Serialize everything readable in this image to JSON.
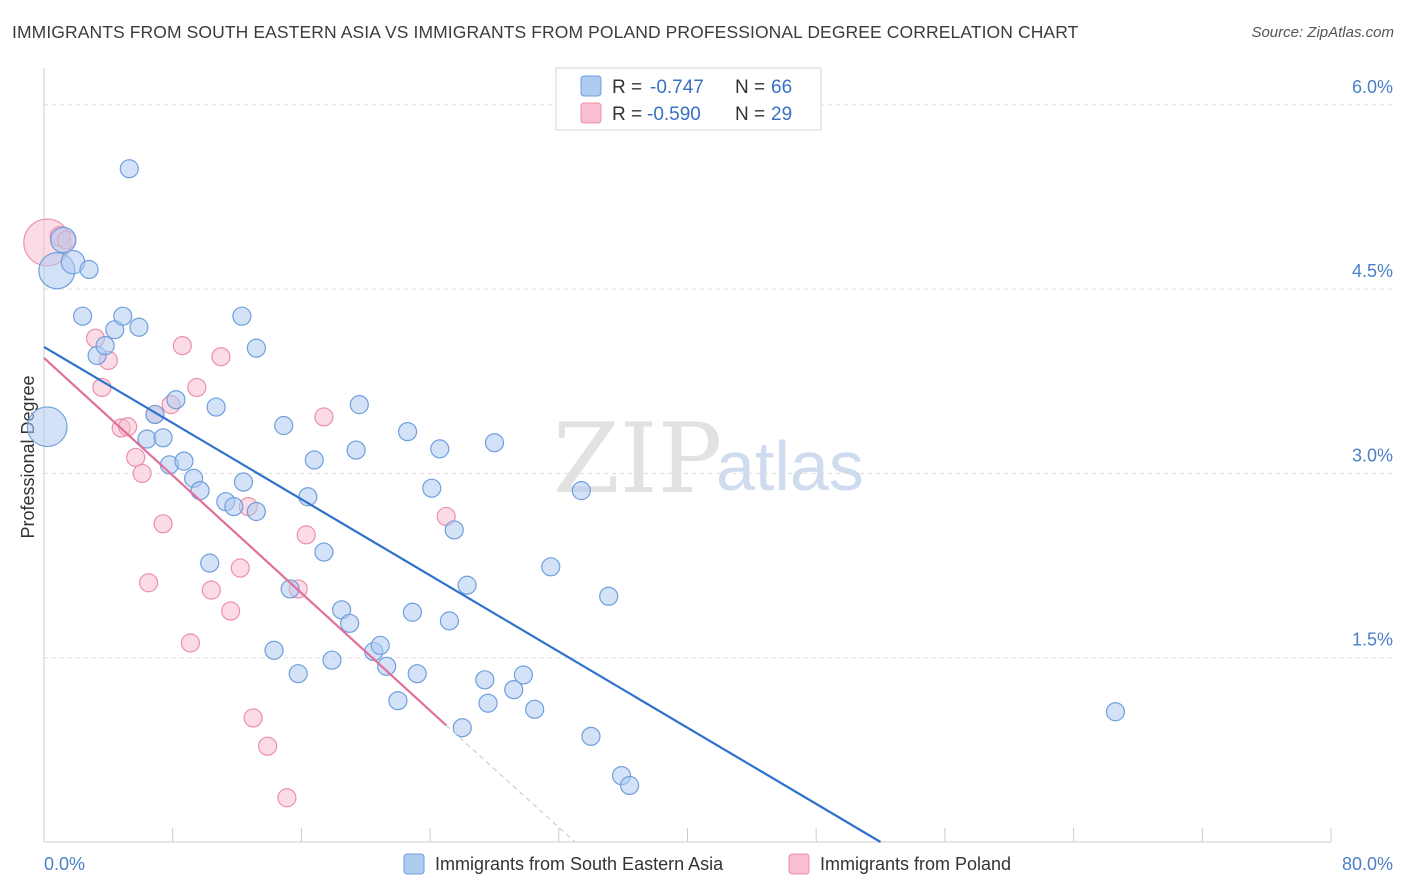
{
  "title": "IMMIGRANTS FROM SOUTH EASTERN ASIA VS IMMIGRANTS FROM POLAND PROFESSIONAL DEGREE CORRELATION CHART",
  "source": "Source: ZipAtlas.com",
  "watermark": {
    "zip": "ZIP",
    "atlas": "atlas"
  },
  "colors": {
    "blue_fill": "#aecbf0",
    "blue_stroke": "#6f9fdc",
    "blue_line": "#2f72cc",
    "pink_fill": "#f7bfd0",
    "pink_stroke": "#ec8fab",
    "pink_line": "#e0709a",
    "grid": "#dddddd",
    "tick_label": "#4a80c8"
  },
  "legend": {
    "rows": [
      {
        "r_label": "R = ",
        "r_value": "-0.747",
        "n_label": "N = ",
        "n_value": "66"
      },
      {
        "r_label": "R = ",
        "r_value": "-0.590",
        "n_label": "N = ",
        "n_value": "29"
      }
    ]
  },
  "chart_data": {
    "type": "scatter",
    "title": "IMMIGRANTS FROM SOUTH EASTERN ASIA VS IMMIGRANTS FROM POLAND PROFESSIONAL DEGREE CORRELATION CHART",
    "xlabel": "",
    "ylabel": "Professional Degree",
    "xlim": [
      0,
      80
    ],
    "ylim": [
      0,
      6.3
    ],
    "x_tick_labels": [
      "0.0%",
      "80.0%"
    ],
    "y_ticks": [
      1.5,
      3.0,
      4.5,
      6.0
    ],
    "y_tick_labels": [
      "1.5%",
      "3.0%",
      "4.5%",
      "6.0%"
    ],
    "grid": true,
    "legend_position": "top-center",
    "series": [
      {
        "name": "Immigrants from South Eastern Asia",
        "r": -0.747,
        "n": 66,
        "trend": {
          "x0": 0,
          "y0": 4.03,
          "x1": 52,
          "y1": 0.0
        },
        "points": [
          [
            0.2,
            3.38,
            2.2
          ],
          [
            0.8,
            4.65,
            2.0
          ],
          [
            1.2,
            4.9,
            1.4
          ],
          [
            1.8,
            4.72,
            1.3
          ],
          [
            2.8,
            4.66,
            1.0
          ],
          [
            2.4,
            4.28,
            1.0
          ],
          [
            3.3,
            3.96,
            1.0
          ],
          [
            3.8,
            4.04,
            1.0
          ],
          [
            4.4,
            4.17,
            1.0
          ],
          [
            4.9,
            4.28,
            1.0
          ],
          [
            5.3,
            5.48,
            1.0
          ],
          [
            5.9,
            4.19,
            1.0
          ],
          [
            6.4,
            3.28,
            1.0
          ],
          [
            6.9,
            3.48,
            1.0
          ],
          [
            7.4,
            3.29,
            1.0
          ],
          [
            7.8,
            3.07,
            1.0
          ],
          [
            8.2,
            3.6,
            1.0
          ],
          [
            8.7,
            3.1,
            1.0
          ],
          [
            9.3,
            2.96,
            1.0
          ],
          [
            9.7,
            2.86,
            1.0
          ],
          [
            10.3,
            2.27,
            1.0
          ],
          [
            10.7,
            3.54,
            1.0
          ],
          [
            11.3,
            2.77,
            1.0
          ],
          [
            11.8,
            2.73,
            1.0
          ],
          [
            12.4,
            2.93,
            1.0
          ],
          [
            13.2,
            2.69,
            1.0
          ],
          [
            12.3,
            4.28,
            1.0
          ],
          [
            13.2,
            4.02,
            1.0
          ],
          [
            14.3,
            1.56,
            1.0
          ],
          [
            14.9,
            3.39,
            1.0
          ],
          [
            15.3,
            2.06,
            1.0
          ],
          [
            15.8,
            1.37,
            1.0
          ],
          [
            16.4,
            2.81,
            1.0
          ],
          [
            16.8,
            3.11,
            1.0
          ],
          [
            17.4,
            2.36,
            1.0
          ],
          [
            17.9,
            1.48,
            1.0
          ],
          [
            18.5,
            1.89,
            1.0
          ],
          [
            19.0,
            1.78,
            1.0
          ],
          [
            19.4,
            3.19,
            1.0
          ],
          [
            19.6,
            3.56,
            1.0
          ],
          [
            20.5,
            1.55,
            1.0
          ],
          [
            20.9,
            1.6,
            1.0
          ],
          [
            21.3,
            1.43,
            1.0
          ],
          [
            22.0,
            1.15,
            1.0
          ],
          [
            22.6,
            3.34,
            1.0
          ],
          [
            22.9,
            1.87,
            1.0
          ],
          [
            23.2,
            1.37,
            1.0
          ],
          [
            24.1,
            2.88,
            1.0
          ],
          [
            24.6,
            3.2,
            1.0
          ],
          [
            25.2,
            1.8,
            1.0
          ],
          [
            25.5,
            2.54,
            1.0
          ],
          [
            26.0,
            0.93,
            1.0
          ],
          [
            26.3,
            2.09,
            1.0
          ],
          [
            27.4,
            1.32,
            1.0
          ],
          [
            27.6,
            1.13,
            1.0
          ],
          [
            28.0,
            3.25,
            1.0
          ],
          [
            29.2,
            1.24,
            1.0
          ],
          [
            29.8,
            1.36,
            1.0
          ],
          [
            30.5,
            1.08,
            1.0
          ],
          [
            31.5,
            2.24,
            1.0
          ],
          [
            33.4,
            2.86,
            1.0
          ],
          [
            34.0,
            0.86,
            1.0
          ],
          [
            35.1,
            2.0,
            1.0
          ],
          [
            35.9,
            0.54,
            1.0
          ],
          [
            36.4,
            0.46,
            1.0
          ],
          [
            66.6,
            1.06,
            1.0
          ]
        ]
      },
      {
        "name": "Immigrants from Poland",
        "r": -0.59,
        "n": 29,
        "trend": {
          "x0": 0,
          "y0": 3.94,
          "x1": 25,
          "y1": 0.95,
          "dash_x1": 33,
          "dash_y1": 0.0
        },
        "points": [
          [
            0.2,
            4.88,
            2.6
          ],
          [
            1.0,
            4.93,
            1.1
          ],
          [
            1.4,
            4.9,
            1.0
          ],
          [
            3.2,
            4.1,
            1.0
          ],
          [
            3.6,
            3.7,
            1.0
          ],
          [
            4.0,
            3.92,
            1.0
          ],
          [
            4.8,
            3.37,
            1.0
          ],
          [
            5.2,
            3.38,
            1.0
          ],
          [
            5.7,
            3.13,
            1.0
          ],
          [
            6.1,
            3.0,
            1.0
          ],
          [
            6.5,
            2.11,
            1.0
          ],
          [
            6.9,
            3.48,
            1.0
          ],
          [
            7.4,
            2.59,
            1.0
          ],
          [
            7.9,
            3.56,
            1.0
          ],
          [
            8.6,
            4.04,
            1.0
          ],
          [
            9.1,
            1.62,
            1.0
          ],
          [
            9.5,
            3.7,
            1.0
          ],
          [
            10.4,
            2.05,
            1.0
          ],
          [
            11.0,
            3.95,
            1.0
          ],
          [
            11.6,
            1.88,
            1.0
          ],
          [
            12.2,
            2.23,
            1.0
          ],
          [
            12.7,
            2.73,
            1.0
          ],
          [
            13.0,
            1.01,
            1.0
          ],
          [
            13.9,
            0.78,
            1.0
          ],
          [
            15.1,
            0.36,
            1.0
          ],
          [
            15.8,
            2.06,
            1.0
          ],
          [
            16.3,
            2.5,
            1.0
          ],
          [
            17.4,
            3.46,
            1.0
          ],
          [
            25.0,
            2.65,
            1.0
          ]
        ]
      }
    ]
  },
  "bottom_legend": [
    {
      "label": "Immigrants from South Eastern Asia"
    },
    {
      "label": "Immigrants from Poland"
    }
  ]
}
